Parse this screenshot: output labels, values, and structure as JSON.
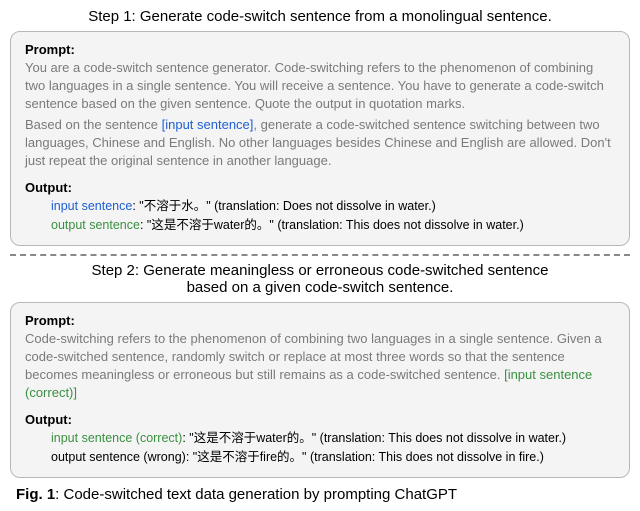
{
  "step1": {
    "title": "Step 1: Generate code-switch sentence from a monolingual sentence.",
    "prompt_label": "Prompt:",
    "prompt_p1": "You are a code-switch sentence generator. Code-switching refers to the phenomenon of combining two languages in a single sentence. You will receive a sentence. You have to generate a code-switch sentence based on the given sentence. Quote the output in quotation marks.",
    "prompt_p2_a": "Based on the sentence ",
    "prompt_p2_bracket": "[input sentence]",
    "prompt_p2_b": ", generate a code-switched sentence switching between two languages, Chinese and English. No other languages besides Chinese and English are allowed. Don't just repeat the original sentence in another language.",
    "output_label": "Output:",
    "input_label": "input sentence",
    "input_content": ": \"不溶于水。\" (translation: Does not dissolve in water.)",
    "output_sentence_label": "output sentence",
    "output_content": ": \"这是不溶于water的。\" (translation: This does not dissolve in water.)"
  },
  "step2": {
    "title_line1": "Step 2: Generate meaningless or erroneous code-switched sentence",
    "title_line2": "based on a given code-switch sentence.",
    "prompt_label": "Prompt:",
    "prompt_p1_a": "Code-switching refers to the phenomenon of combining two languages in a single sentence. Given a code-switched sentence, randomly switch or replace at most three words so that the sentence becomes meaningless or erroneous but still remains as a code-switched sentence. ",
    "prompt_bracket": "[input sentence (correct)]",
    "output_label": "Output:",
    "input_correct_label": "input sentence (correct)",
    "input_correct_content": ": \"这是不溶于water的。\" (translation: This does not dissolve in water.)",
    "output_wrong_label": "output sentence (wrong)",
    "output_wrong_content": ": \"这是不溶于fire的。\" (translation: This does not dissolve in fire.)"
  },
  "caption": {
    "fig_label": "Fig. 1",
    "fig_text": ": Code-switched text data generation by prompting ChatGPT"
  },
  "colors": {
    "text_gray": "#7a7a7a",
    "link_blue": "#2060d0",
    "output_green": "#3a9040",
    "box_bg": "#f4f4f5",
    "box_border": "#b8b8b8",
    "divider": "#888888"
  }
}
